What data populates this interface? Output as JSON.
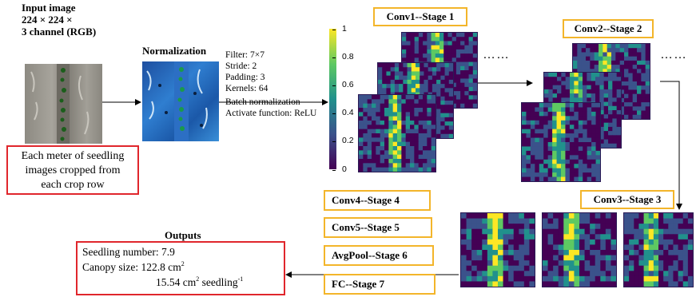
{
  "input": {
    "title_line1": "Input image",
    "title_line2": "224 × 224 ×",
    "title_line3": "3 channel (RGB)"
  },
  "seedling_note": {
    "line1": "Each meter of seedling",
    "line2": "images cropped from",
    "line3": "each crop row"
  },
  "normalization": {
    "title": "Normalization",
    "params": [
      "Filter: 7×7",
      "Stride: 2",
      "Padding: 3",
      "Kernels: 64",
      "Batch normalization",
      "Activate function: ReLU"
    ]
  },
  "colorbar": {
    "ticks": [
      "1",
      "0.8",
      "0.6",
      "0.4",
      "0.2",
      "0"
    ],
    "colors": [
      "#fde725",
      "#5ec962",
      "#21918c",
      "#3b528b",
      "#440154"
    ]
  },
  "stages": {
    "conv1": "Conv1--Stage 1",
    "conv2": "Conv2--Stage 2",
    "conv3": "Conv3--Stage 3",
    "conv4": "Conv4--Stage 4",
    "conv5": "Conv5--Stage 5",
    "avgpool": "AvgPool--Stage 6",
    "fc": "FC--Stage 7"
  },
  "ellipsis": "……",
  "outputs": {
    "title": "Outputs",
    "seedling_number": "Seedling number: 7.9",
    "canopy_label": "Canopy size: 122.8 cm",
    "canopy_sup": "2",
    "per_seedling_label": "15.54 cm",
    "per_seedling_sup1": "2",
    "per_seedling_mid": " seedling",
    "per_seedling_sup2": "-1"
  }
}
